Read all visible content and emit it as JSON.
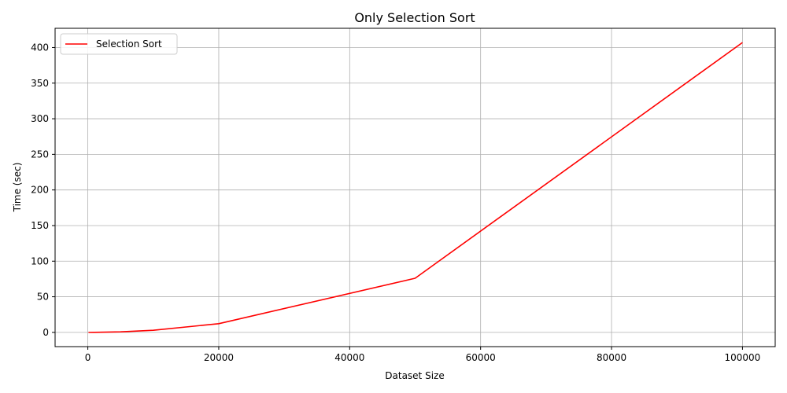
{
  "chart_data": {
    "type": "line",
    "title": "Only Selection Sort",
    "xlabel": "Dataset Size",
    "ylabel": "Time (sec)",
    "xlim": [
      -5000,
      105000
    ],
    "ylim": [
      -20,
      427
    ],
    "xticks": [
      0,
      20000,
      40000,
      60000,
      80000,
      100000
    ],
    "yticks": [
      0,
      50,
      100,
      150,
      200,
      250,
      300,
      350,
      400
    ],
    "grid": true,
    "legend_position": "top-left",
    "series": [
      {
        "name": "Selection Sort",
        "color": "#ff0000",
        "x": [
          100,
          1000,
          5000,
          10000,
          20000,
          50000,
          100000
        ],
        "y": [
          0.0,
          0.03,
          0.8,
          3.0,
          12.2,
          76.0,
          407.0
        ]
      }
    ]
  }
}
